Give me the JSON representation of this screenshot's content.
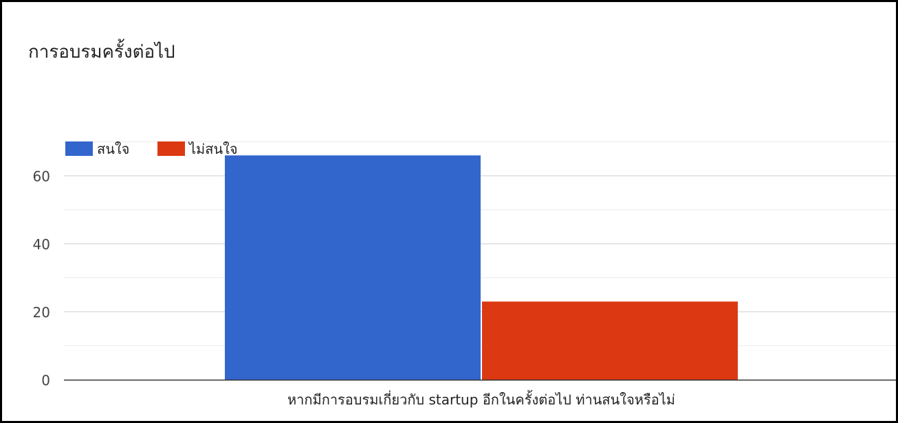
{
  "chart_data": {
    "type": "bar",
    "title": "การอบรมครั้งต่อไป",
    "categories": [
      "หากมีการอบรมเกี่ยวกับ startup อีกในครั้งต่อไป ท่านสนใจหรือไม่"
    ],
    "series": [
      {
        "name": "สนใจ",
        "values": [
          66
        ],
        "color": "#3366cc"
      },
      {
        "name": "ไม่สนใจ",
        "values": [
          23
        ],
        "color": "#dc3912"
      }
    ],
    "yticks": [
      0,
      20,
      40,
      60
    ],
    "ylim": [
      0,
      70
    ],
    "minor_grid": true,
    "legend_position": "top-left"
  }
}
